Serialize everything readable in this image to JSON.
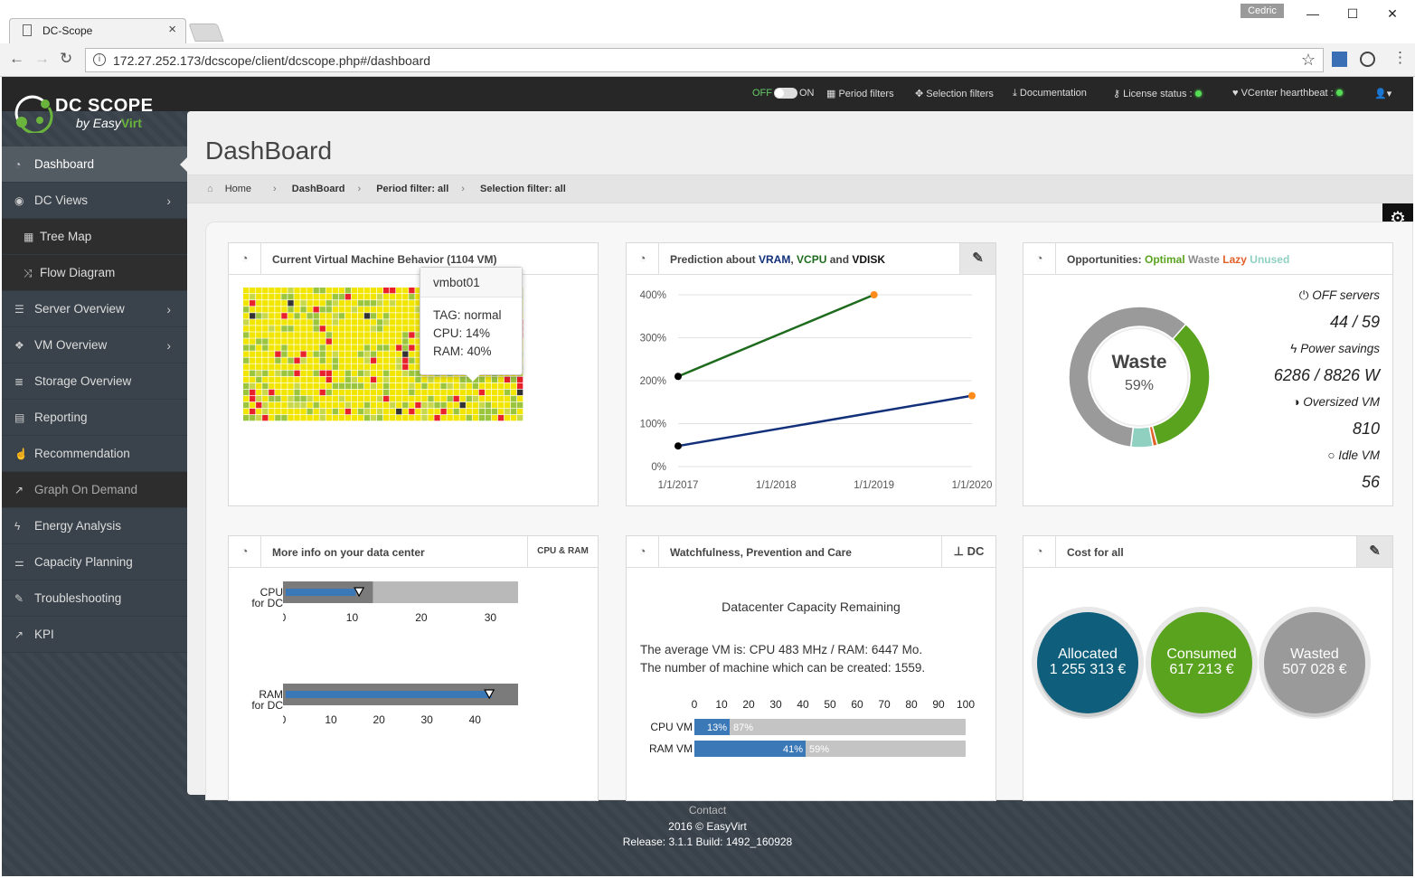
{
  "browser": {
    "tab_title": "DC-Scope",
    "user_chip": "Cedric",
    "url": "172.27.252.173/dcscope/client/dcscope.php#/dashboard"
  },
  "logo": {
    "title": "DC SCOPE",
    "by": "by",
    "brand_easy": "Easy",
    "brand_virt": "Virt"
  },
  "topbar": {
    "off": "OFF",
    "on": "ON",
    "period_filters": "Period filters",
    "selection_filters": "Selection filters",
    "documentation": "Documentation",
    "license_status": "License status :",
    "vcenter": "VCenter hearthbeat :"
  },
  "sidebar": {
    "items": [
      {
        "label": "Dashboard",
        "icon": "dashboard-icon"
      },
      {
        "label": "DC Views",
        "icon": "eye-icon"
      },
      {
        "label": "Tree Map",
        "icon": "grid-icon"
      },
      {
        "label": "Flow Diagram",
        "icon": "shuffle-icon"
      },
      {
        "label": "Server Overview",
        "icon": "server-icon"
      },
      {
        "label": "VM Overview",
        "icon": "cubes-icon"
      },
      {
        "label": "Storage Overview",
        "icon": "database-icon"
      },
      {
        "label": "Reporting",
        "icon": "book-icon"
      },
      {
        "label": "Recommendation",
        "icon": "thumbs-up-icon"
      },
      {
        "label": "Graph On Demand",
        "icon": "line-chart-icon"
      },
      {
        "label": "Energy Analysis",
        "icon": "bolt-icon"
      },
      {
        "label": "Capacity Planning",
        "icon": "sliders-icon"
      },
      {
        "label": "Troubleshooting",
        "icon": "wrench-icon"
      },
      {
        "label": "KPI",
        "icon": "line-chart-icon"
      }
    ]
  },
  "page": {
    "title": "DashBoard"
  },
  "breadcrumb": {
    "home": "Home",
    "dashboard": "DashBoard",
    "period": "Period filter: all",
    "selection": "Selection filter: all"
  },
  "panels": {
    "vm_behavior": {
      "title": "Current Virtual Machine Behavior (1104 VM)",
      "tooltip": {
        "name": "vmbot01",
        "tag": "TAG: normal",
        "cpu": "CPU: 14%",
        "ram": "RAM: 40%"
      }
    },
    "prediction": {
      "title_pre": "Prediction about ",
      "vram": "VRAM",
      "sep1": ", ",
      "vcpu": "VCPU",
      "and": " and ",
      "vdisk": "VDISK"
    },
    "opportunities": {
      "title_pre": "Opportunities: ",
      "optimal": "Optimal",
      "waste": "Waste",
      "lazy": "Lazy",
      "unused": "Unused",
      "donut_label": "Waste",
      "donut_pct": "59%",
      "off_servers_label": "OFF servers",
      "off_servers_value": "44 / 59",
      "power_label": "Power savings",
      "power_value": "6286 / 8826 W",
      "oversized_label": "Oversized VM",
      "oversized_value": "810",
      "idle_label": "Idle VM",
      "idle_value": "56"
    },
    "more_info": {
      "title": "More info on your data center",
      "button": "CPU & RAM",
      "cpu_label1": "CPU",
      "cpu_label2": "for DC",
      "ram_label1": "RAM",
      "ram_label2": "for DC"
    },
    "watchfulness": {
      "title": "Watchfulness, Prevention and Care",
      "button": "DC",
      "subtitle": "Datacenter Capacity Remaining",
      "line1": "The average VM is: CPU 483 MHz / RAM: 6447 Mo.",
      "line2": "The number of machine which can be created: 1559.",
      "cpu_label": "CPU VM",
      "ram_label": "RAM VM"
    },
    "cost": {
      "title": "Cost for all",
      "allocated_label": "Allocated",
      "allocated_value": "1 255 313 €",
      "consumed_label": "Consumed",
      "consumed_value": "617 213 €",
      "wasted_label": "Wasted",
      "wasted_value": "507 028 €"
    }
  },
  "chart_data": [
    {
      "type": "line",
      "x": [
        "1/1/2017",
        "1/1/2018",
        "1/1/2019",
        "1/1/2020"
      ],
      "ylim": [
        0,
        400
      ],
      "yticks": [
        "0%",
        "100%",
        "200%",
        "300%",
        "400%"
      ],
      "series": [
        {
          "points": [
            [
              "1/1/2017",
              210
            ],
            [
              "1/1/2019",
              400
            ]
          ],
          "color": "#1e6b1e"
        },
        {
          "points": [
            [
              "1/1/2017",
              48
            ],
            [
              "1/1/2020",
              165
            ]
          ],
          "color": "#12307a"
        }
      ]
    },
    {
      "type": "pie",
      "slices": [
        {
          "label": "Waste",
          "value": 59,
          "color": "#9a9a9a"
        },
        {
          "label": "Optimal",
          "value": 34,
          "color": "#5aa31e"
        },
        {
          "label": "Unused",
          "value": 5,
          "color": "#8fd0c0"
        },
        {
          "label": "Lazy",
          "value": 1,
          "color": "#e0612a"
        }
      ]
    },
    {
      "type": "bar",
      "name": "CPU for DC",
      "xlim": [
        0,
        34
      ],
      "ticks": [
        "0",
        "10",
        "20",
        "30"
      ],
      "max_value": 13,
      "value": 10.5,
      "marker": 11
    },
    {
      "type": "bar",
      "name": "RAM for DC",
      "xlim": [
        0,
        49
      ],
      "ticks": [
        "0",
        "10",
        "20",
        "30",
        "40"
      ],
      "max_value": 49,
      "value": 43.5,
      "marker": 43
    },
    {
      "type": "bar",
      "categories": [
        "CPU VM",
        "RAM VM"
      ],
      "xlim": [
        0,
        100
      ],
      "ticks": [
        "0",
        "10",
        "20",
        "30",
        "40",
        "50",
        "60",
        "70",
        "80",
        "90",
        "100"
      ],
      "used": [
        13,
        41
      ],
      "free": [
        87,
        59
      ],
      "used_labels": [
        "13%",
        "41%"
      ],
      "free_labels": [
        "87%",
        "59%"
      ]
    }
  ],
  "footer": {
    "contact": "Contact",
    "copyright": "2016 © EasyVirt",
    "release": "Release: 3.1.1 Build: 1492_160928"
  }
}
